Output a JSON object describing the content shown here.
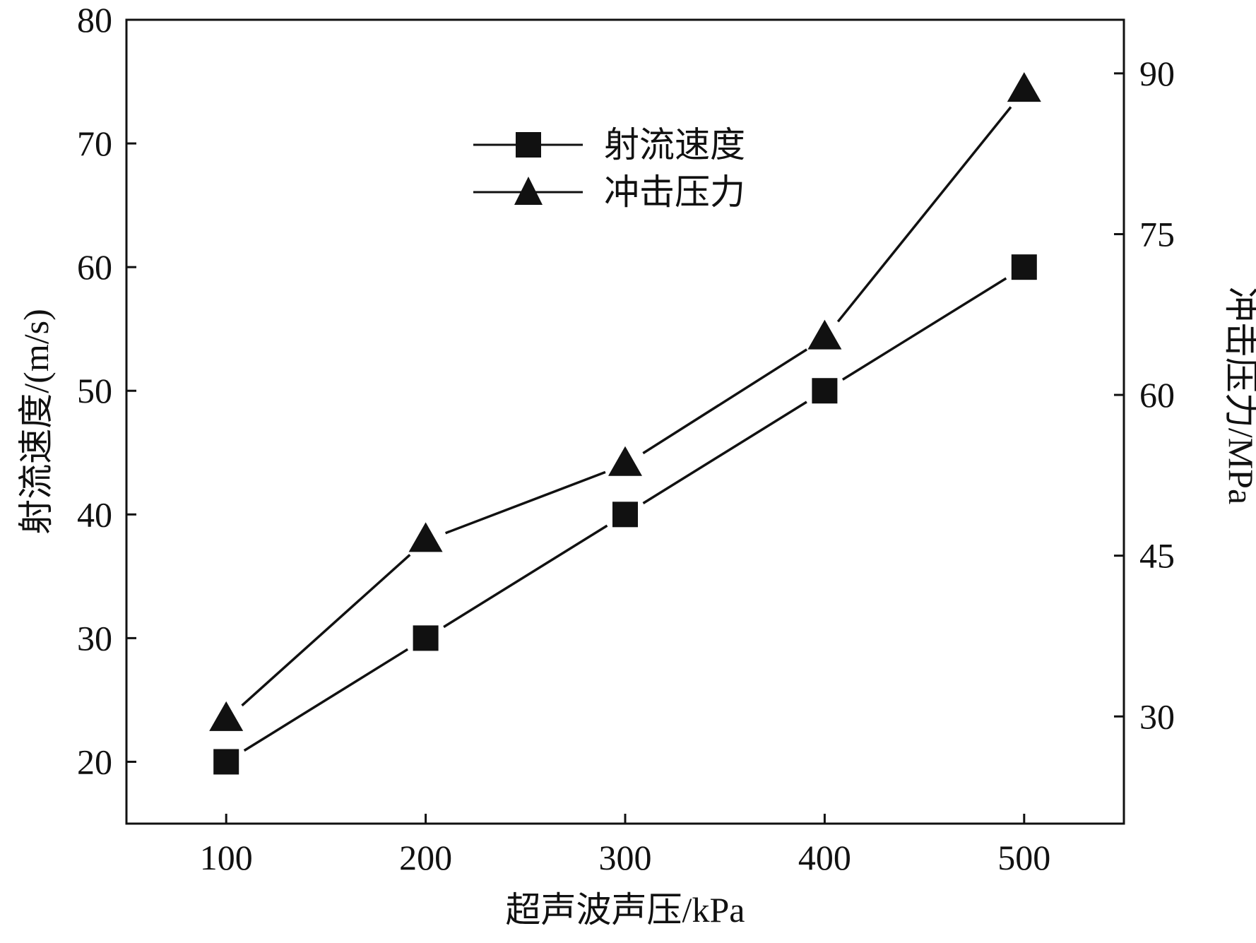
{
  "chart_data": {
    "type": "line",
    "title": "",
    "xlabel": "超声波声压/kPa",
    "ylabel": "射流速度/(m/s)",
    "y2label": "冲击压力/MPa",
    "x": [
      100,
      200,
      300,
      400,
      500
    ],
    "xlim": [
      50,
      550
    ],
    "ylim": [
      15,
      80
    ],
    "y2lim": [
      20,
      95
    ],
    "xticks": [
      "100",
      "200",
      "300",
      "400",
      "500"
    ],
    "yticks": [
      "20",
      "30",
      "40",
      "50",
      "60",
      "70",
      "80"
    ],
    "y2ticks": [
      "30",
      "45",
      "60",
      "75",
      "90"
    ],
    "grid": false,
    "legend_position": "top-center",
    "series": [
      {
        "name": "射流速度",
        "axis": "left",
        "marker": "square",
        "values": [
          20,
          30,
          40,
          50,
          60
        ]
      },
      {
        "name": "冲击压力",
        "axis": "right",
        "marker": "triangle",
        "values": [
          29.7,
          46.4,
          53.5,
          65.3,
          88.4
        ]
      }
    ],
    "color": "#111111"
  }
}
